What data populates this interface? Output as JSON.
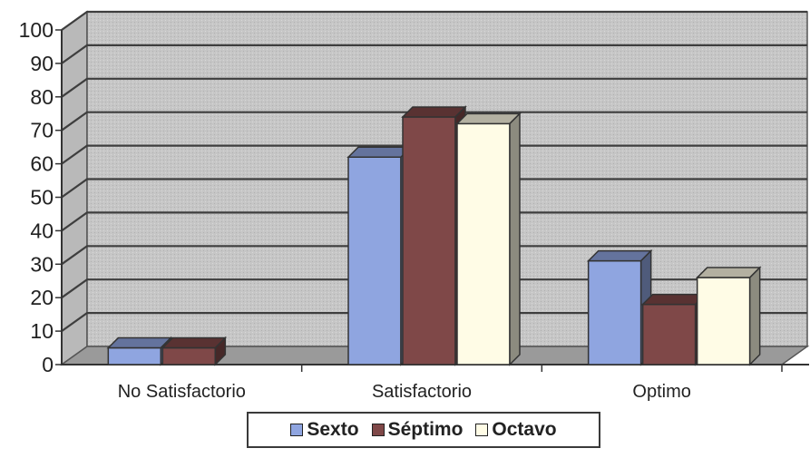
{
  "chart_data": {
    "type": "bar",
    "categories": [
      "No Satisfactorio",
      "Satisfactorio",
      "Optimo"
    ],
    "series": [
      {
        "name": "Sexto",
        "values": [
          5,
          62,
          31
        ],
        "color": "#8fa5e0"
      },
      {
        "name": "Séptimo",
        "values": [
          5,
          74,
          18
        ],
        "color": "#7f4848"
      },
      {
        "name": "Octavo",
        "values": [
          0,
          72,
          26
        ],
        "color": "#fffce6"
      }
    ],
    "ylim": [
      0,
      100
    ],
    "yticks": [
      "0",
      "10",
      "20",
      "30",
      "40",
      "50",
      "60",
      "70",
      "80",
      "90",
      "100"
    ],
    "grid": true,
    "legend_position": "bottom",
    "three_d": true
  }
}
